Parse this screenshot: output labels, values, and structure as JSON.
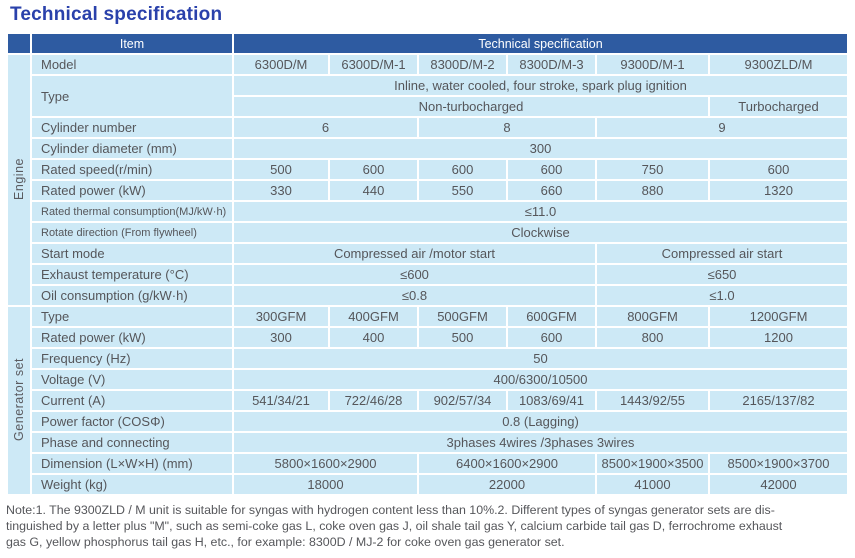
{
  "page_title": "Technical specification",
  "colors": {
    "title_blue": "#2a41ab",
    "header_blue": "#2e5ba1",
    "cell_blue": "#cde9f6",
    "text_gray": "#55565a"
  },
  "table": {
    "header": {
      "item_label": "Item",
      "spec_label": "Technical specification"
    },
    "sections": [
      {
        "label": "Engine",
        "rows": [
          {
            "label": "Model",
            "cells": [
              {
                "text": "6300D/M",
                "span": 1
              },
              {
                "text": "6300D/M-1",
                "span": 1
              },
              {
                "text": "8300D/M-2",
                "span": 1
              },
              {
                "text": "8300D/M-3",
                "span": 1
              },
              {
                "text": "9300D/M-1",
                "span": 1
              },
              {
                "text": "9300ZLD/M",
                "span": 1
              }
            ]
          },
          {
            "label": "Type",
            "label_rowspan": 2,
            "cells": [
              {
                "text": "Inline, water cooled, four stroke, spark plug ignition",
                "span": 6
              }
            ]
          },
          {
            "label": null,
            "cells": [
              {
                "text": "Non-turbocharged",
                "span": 5
              },
              {
                "text": "Turbocharged",
                "span": 1
              }
            ]
          },
          {
            "label": "Cylinder number",
            "cells": [
              {
                "text": "6",
                "span": 2
              },
              {
                "text": "8",
                "span": 2
              },
              {
                "text": "9",
                "span": 2
              }
            ]
          },
          {
            "label": "Cylinder diameter (mm)",
            "cells": [
              {
                "text": "300",
                "span": 6
              }
            ]
          },
          {
            "label": "Rated speed(r/min)",
            "cells": [
              {
                "text": "500",
                "span": 1
              },
              {
                "text": "600",
                "span": 1
              },
              {
                "text": "600",
                "span": 1
              },
              {
                "text": "600",
                "span": 1
              },
              {
                "text": "750",
                "span": 1
              },
              {
                "text": "600",
                "span": 1
              }
            ]
          },
          {
            "label": "Rated power (kW)",
            "cells": [
              {
                "text": "330",
                "span": 1
              },
              {
                "text": "440",
                "span": 1
              },
              {
                "text": "550",
                "span": 1
              },
              {
                "text": "660",
                "span": 1
              },
              {
                "text": "880",
                "span": 1
              },
              {
                "text": "1320",
                "span": 1
              }
            ]
          },
          {
            "label": "Rated thermal consumption(MJ/kW·h)",
            "cells": [
              {
                "text": "≤11.0",
                "span": 6
              }
            ]
          },
          {
            "label": "Rotate direction (From flywheel)",
            "cells": [
              {
                "text": "Clockwise",
                "span": 6
              }
            ]
          },
          {
            "label": "Start mode",
            "cells": [
              {
                "text": "Compressed air /motor start",
                "span": 4
              },
              {
                "text": "Compressed air start",
                "span": 2
              }
            ]
          },
          {
            "label": "Exhaust temperature (°C)",
            "cells": [
              {
                "text": "≤600",
                "span": 4
              },
              {
                "text": "≤650",
                "span": 2
              }
            ]
          },
          {
            "label": "Oil consumption  (g/kW·h)",
            "cells": [
              {
                "text": "≤0.8",
                "span": 4
              },
              {
                "text": "≤1.0",
                "span": 2
              }
            ]
          }
        ]
      },
      {
        "label": "Generator set",
        "rows": [
          {
            "label": "Type",
            "cells": [
              {
                "text": "300GFM",
                "span": 1
              },
              {
                "text": "400GFM",
                "span": 1
              },
              {
                "text": "500GFM",
                "span": 1
              },
              {
                "text": "600GFM",
                "span": 1
              },
              {
                "text": "800GFM",
                "span": 1
              },
              {
                "text": "1200GFM",
                "span": 1
              }
            ]
          },
          {
            "label": "Rated power  (kW)",
            "cells": [
              {
                "text": "300",
                "span": 1
              },
              {
                "text": "400",
                "span": 1
              },
              {
                "text": "500",
                "span": 1
              },
              {
                "text": "600",
                "span": 1
              },
              {
                "text": "800",
                "span": 1
              },
              {
                "text": "1200",
                "span": 1
              }
            ]
          },
          {
            "label": "Frequency  (Hz)",
            "cells": [
              {
                "text": "50",
                "span": 6
              }
            ]
          },
          {
            "label": "Voltage  (V)",
            "cells": [
              {
                "text": "400/6300/10500",
                "span": 6
              }
            ]
          },
          {
            "label": "Current  (A)",
            "cells": [
              {
                "text": "541/34/21",
                "span": 1
              },
              {
                "text": "722/46/28",
                "span": 1
              },
              {
                "text": "902/57/34",
                "span": 1
              },
              {
                "text": "1083/69/41",
                "span": 1
              },
              {
                "text": "1443/92/55",
                "span": 1
              },
              {
                "text": "2165/137/82",
                "span": 1
              }
            ]
          },
          {
            "label": "Power factor   (COSΦ)",
            "cells": [
              {
                "text": "0.8 (Lagging)",
                "span": 6
              }
            ]
          },
          {
            "label": "Phase and connecting",
            "cells": [
              {
                "text": "3phases 4wires /3phases 3wires",
                "span": 6
              }
            ]
          },
          {
            "label": "Dimension (L×W×H)   (mm)",
            "cells": [
              {
                "text": "5800×1600×2900",
                "span": 2
              },
              {
                "text": "6400×1600×2900",
                "span": 2
              },
              {
                "text": "8500×1900×3500",
                "span": 1
              },
              {
                "text": "8500×1900×3700",
                "span": 1
              }
            ]
          },
          {
            "label": "Weight  (kg)",
            "cells": [
              {
                "text": "18000",
                "span": 2
              },
              {
                "text": "22000",
                "span": 2
              },
              {
                "text": "41000",
                "span": 1
              },
              {
                "text": "42000",
                "span": 1
              }
            ]
          }
        ]
      }
    ]
  },
  "note_lines": [
    "Note:1. The 9300ZLD / M unit is suitable for syngas with hydrogen content less than 10%.2. Different types of syngas generator sets are dis-",
    "tinguished by a letter plus \"M\", such as semi-coke gas L, coke oven gas J, oil shale tail gas Y, calcium carbide tail gas D, ferrochrome exhaust",
    "gas G, yellow phosphorus tail gas H, etc., for example: 8300D / MJ-2 for coke oven gas generator set."
  ]
}
